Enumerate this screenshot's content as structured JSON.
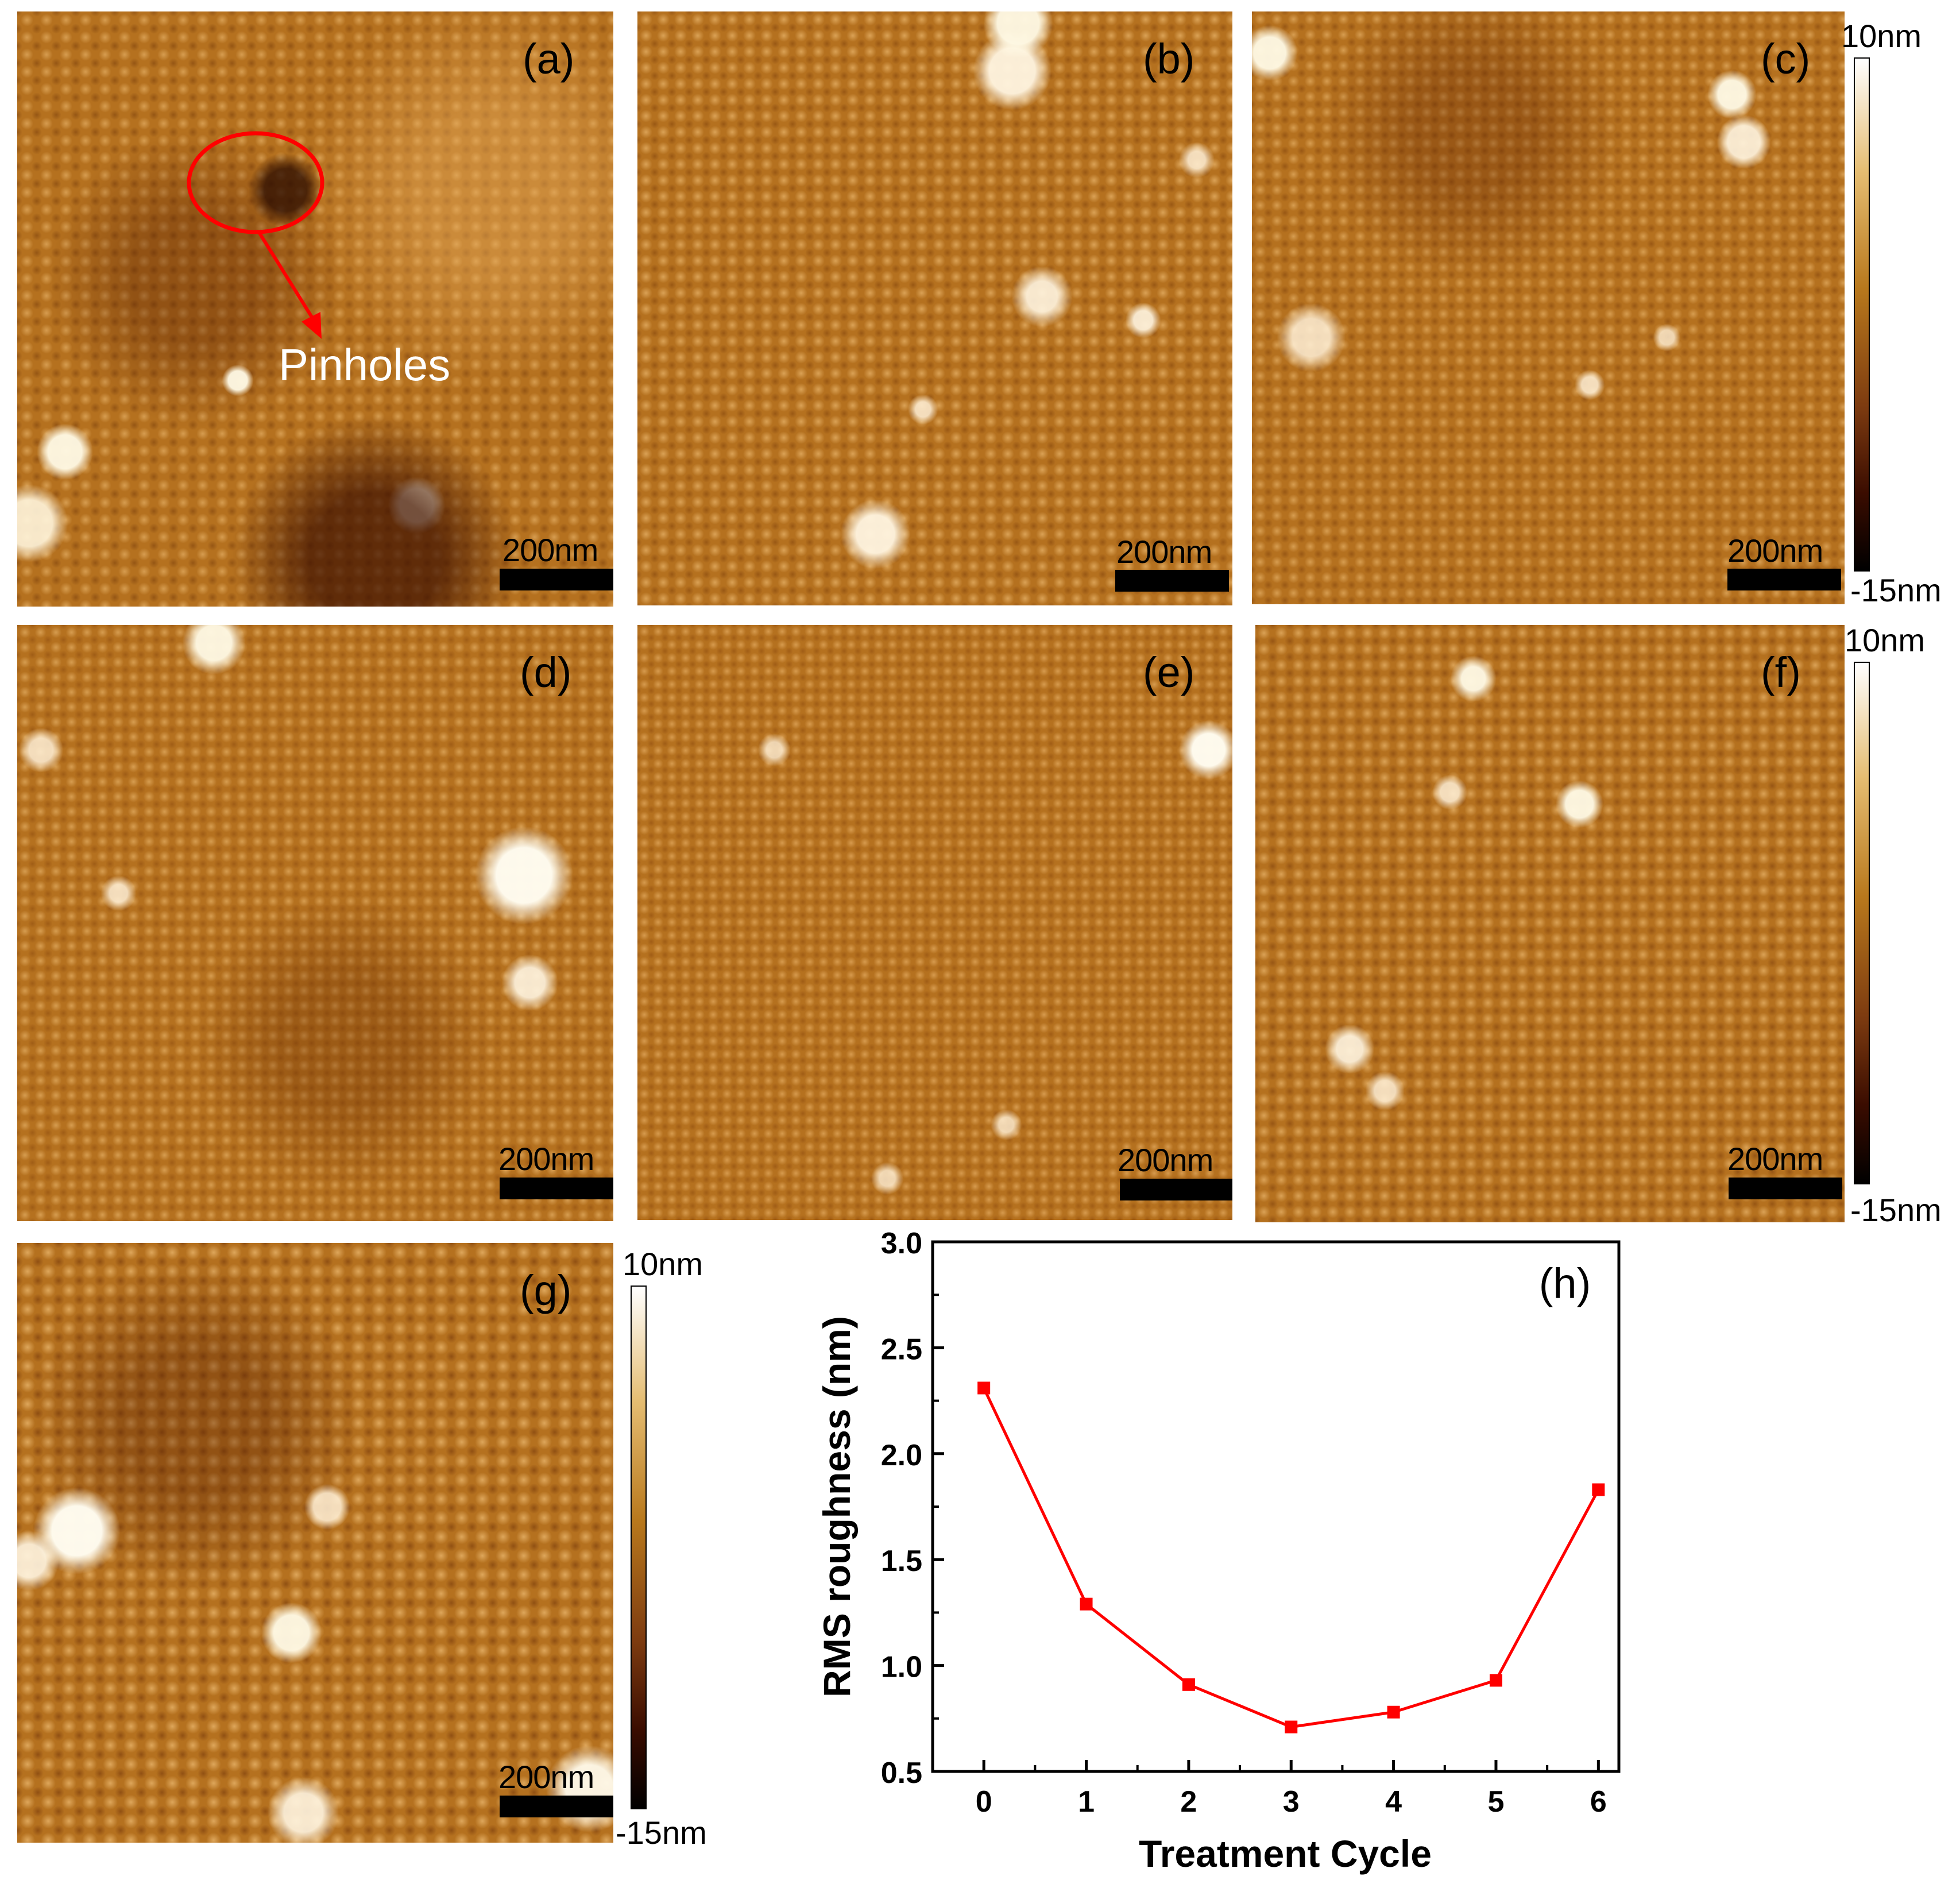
{
  "panels": [
    {
      "id": "a",
      "label": "(a)",
      "scale_bar": "200nm"
    },
    {
      "id": "b",
      "label": "(b)",
      "scale_bar": "200nm"
    },
    {
      "id": "c",
      "label": "(c)",
      "scale_bar": "200nm"
    },
    {
      "id": "d",
      "label": "(d)",
      "scale_bar": "200nm"
    },
    {
      "id": "e",
      "label": "(e)",
      "scale_bar": "200nm"
    },
    {
      "id": "f",
      "label": "(f)",
      "scale_bar": "200nm"
    },
    {
      "id": "g",
      "label": "(g)",
      "scale_bar": "200nm"
    }
  ],
  "annotation": {
    "text": "Pinholes",
    "color": "#ff0000"
  },
  "colorbars": [
    {
      "max": "10nm",
      "min": "-15nm"
    },
    {
      "max": "10nm",
      "min": "-15nm"
    },
    {
      "max": "10nm",
      "min": "-15nm"
    }
  ],
  "colors": {
    "afm": "#b5711f",
    "series": "#ff0000"
  },
  "chart_data": {
    "type": "line",
    "label": "(h)",
    "xlabel": "Treatment Cycle",
    "ylabel": "RMS roughness (nm)",
    "xlim": [
      -0.5,
      6.2
    ],
    "ylim": [
      0.5,
      3.0
    ],
    "xticks": [
      "0",
      "1",
      "2",
      "3",
      "4",
      "5",
      "6"
    ],
    "yticks": [
      "0.5",
      "1.0",
      "1.5",
      "2.0",
      "2.5",
      "3.0"
    ],
    "x": [
      0,
      1,
      2,
      3,
      4,
      5,
      6
    ],
    "series": [
      {
        "values": [
          2.31,
          1.29,
          0.91,
          0.71,
          0.78,
          0.93,
          1.83
        ],
        "color": "#ff0000",
        "marker": "square"
      }
    ]
  }
}
